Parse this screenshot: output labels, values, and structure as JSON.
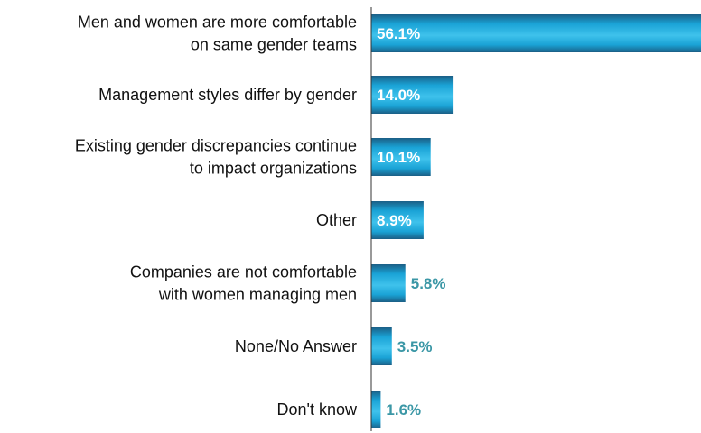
{
  "chart_data": {
    "type": "bar",
    "orientation": "horizontal",
    "categories": [
      [
        "Men and women are more comfortable",
        "on same gender teams"
      ],
      [
        "Management styles differ by gender"
      ],
      [
        "Existing gender discrepancies continue",
        "to impact organizations"
      ],
      [
        "Other"
      ],
      [
        "Companies are not comfortable",
        "with women managing men"
      ],
      [
        "None/No Answer"
      ],
      [
        "Don't know"
      ]
    ],
    "values": [
      56.1,
      14.0,
      10.1,
      8.9,
      5.8,
      3.5,
      1.6
    ],
    "value_labels": [
      "56.1%",
      "14.0%",
      "10.1%",
      "8.9%",
      "5.8%",
      "3.5%",
      "1.6%"
    ],
    "unit": "%",
    "xlim": [
      0,
      56.1
    ],
    "grid": false,
    "legend": "none",
    "colors": {
      "bar_light": "#3fc2ec",
      "bar_mid": "#1aa3d6",
      "bar_dark": "#1b5f86",
      "label_inside": "#ffffff",
      "label_outside": "#3b97a6",
      "axis": "#333333"
    }
  }
}
